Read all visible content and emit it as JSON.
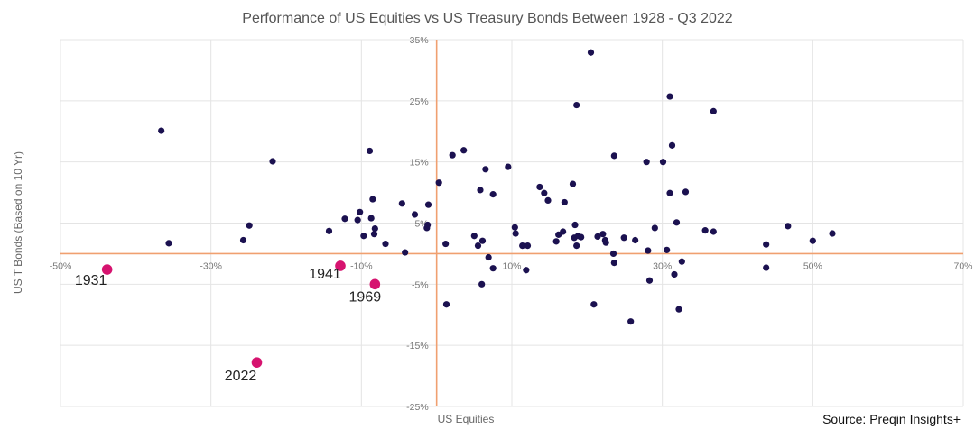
{
  "chart_data": {
    "type": "scatter",
    "title": "Performance of US Equities vs US Treasury Bonds Between 1928 - Q3 2022",
    "xlabel": "US Equities",
    "ylabel": "US T Bonds (Based on 10 Yr)",
    "xlim": [
      -50,
      70
    ],
    "ylim": [
      -25,
      35
    ],
    "x_ticks": [
      -50,
      -30,
      -10,
      10,
      30,
      50,
      70
    ],
    "x_tick_labels": [
      "-50%",
      "-30%",
      "-10%",
      "10%",
      "30%",
      "50%",
      "70%"
    ],
    "y_ticks": [
      -25,
      -15,
      -5,
      5,
      15,
      25,
      35
    ],
    "y_tick_labels": [
      "-25%",
      "-15%",
      "-5%",
      "5%",
      "15%",
      "25%",
      "35%"
    ],
    "grid": true,
    "colors": {
      "points": "#1b1150",
      "highlight": "#d6136f",
      "zero_lines": "#f0a070",
      "grid": "#e4e4e4"
    },
    "points": [
      [
        -36.6,
        20.1
      ],
      [
        -35.6,
        1.7
      ],
      [
        -25.7,
        2.2
      ],
      [
        -24.9,
        4.6
      ],
      [
        -21.8,
        15.1
      ],
      [
        -14.3,
        3.7
      ],
      [
        -12.2,
        5.7
      ],
      [
        -10.5,
        5.5
      ],
      [
        -10.2,
        6.8
      ],
      [
        -9.7,
        2.9
      ],
      [
        -8.9,
        16.8
      ],
      [
        -8.7,
        5.8
      ],
      [
        -8.5,
        8.9
      ],
      [
        -8.2,
        4.1
      ],
      [
        -8.3,
        3.2
      ],
      [
        -6.8,
        1.6
      ],
      [
        -4.6,
        8.2
      ],
      [
        -4.2,
        0.2
      ],
      [
        -2.9,
        6.4
      ],
      [
        -1.3,
        4.2
      ],
      [
        -1.1,
        8.0
      ],
      [
        -1.2,
        4.7
      ],
      [
        0.3,
        11.6
      ],
      [
        1.3,
        -8.3
      ],
      [
        1.2,
        1.6
      ],
      [
        2.1,
        16.1
      ],
      [
        3.6,
        16.9
      ],
      [
        5.0,
        2.9
      ],
      [
        5.5,
        1.3
      ],
      [
        5.8,
        10.4
      ],
      [
        6.1,
        2.1
      ],
      [
        6.5,
        13.8
      ],
      [
        6.0,
        -5.0
      ],
      [
        6.9,
        -0.6
      ],
      [
        7.5,
        9.7
      ],
      [
        7.5,
        -2.4
      ],
      [
        9.5,
        14.2
      ],
      [
        10.4,
        4.3
      ],
      [
        10.5,
        3.3
      ],
      [
        11.4,
        1.3
      ],
      [
        12.1,
        1.3
      ],
      [
        11.9,
        -2.7
      ],
      [
        13.7,
        10.9
      ],
      [
        14.3,
        9.9
      ],
      [
        14.8,
        8.7
      ],
      [
        15.9,
        2.0
      ],
      [
        16.2,
        3.1
      ],
      [
        16.8,
        3.6
      ],
      [
        17.0,
        8.4
      ],
      [
        18.1,
        11.4
      ],
      [
        18.3,
        2.6
      ],
      [
        18.4,
        4.7
      ],
      [
        18.6,
        1.3
      ],
      [
        18.6,
        24.3
      ],
      [
        18.8,
        2.9
      ],
      [
        19.2,
        2.7
      ],
      [
        20.5,
        32.9
      ],
      [
        20.9,
        -8.3
      ],
      [
        21.4,
        2.8
      ],
      [
        22.1,
        3.2
      ],
      [
        22.5,
        1.8
      ],
      [
        22.4,
        2.2
      ],
      [
        23.6,
        16.0
      ],
      [
        23.5,
        0.0
      ],
      [
        23.6,
        -1.5
      ],
      [
        24.9,
        2.6
      ],
      [
        25.8,
        -11.1
      ],
      [
        26.4,
        2.2
      ],
      [
        27.9,
        15.0
      ],
      [
        28.1,
        0.5
      ],
      [
        28.3,
        -4.4
      ],
      [
        29.0,
        4.2
      ],
      [
        30.1,
        15.0
      ],
      [
        30.6,
        0.6
      ],
      [
        31.0,
        25.7
      ],
      [
        31.0,
        9.9
      ],
      [
        31.3,
        17.7
      ],
      [
        31.6,
        -3.4
      ],
      [
        31.9,
        5.1
      ],
      [
        32.2,
        -9.1
      ],
      [
        32.6,
        -1.3
      ],
      [
        33.1,
        10.1
      ],
      [
        35.7,
        3.8
      ],
      [
        36.8,
        23.3
      ],
      [
        36.8,
        3.6
      ],
      [
        43.8,
        1.5
      ],
      [
        43.8,
        -2.3
      ],
      [
        46.7,
        4.5
      ],
      [
        50.0,
        2.1
      ],
      [
        52.6,
        3.3
      ]
    ],
    "highlighted": [
      {
        "label": "1931",
        "x": -43.8,
        "y": -2.6
      },
      {
        "label": "1941",
        "x": -12.8,
        "y": -2.0
      },
      {
        "label": "1969",
        "x": -8.2,
        "y": -5.0
      },
      {
        "label": "2022",
        "x": -23.9,
        "y": -17.8
      }
    ]
  },
  "source": "Source: Preqin Insights+"
}
